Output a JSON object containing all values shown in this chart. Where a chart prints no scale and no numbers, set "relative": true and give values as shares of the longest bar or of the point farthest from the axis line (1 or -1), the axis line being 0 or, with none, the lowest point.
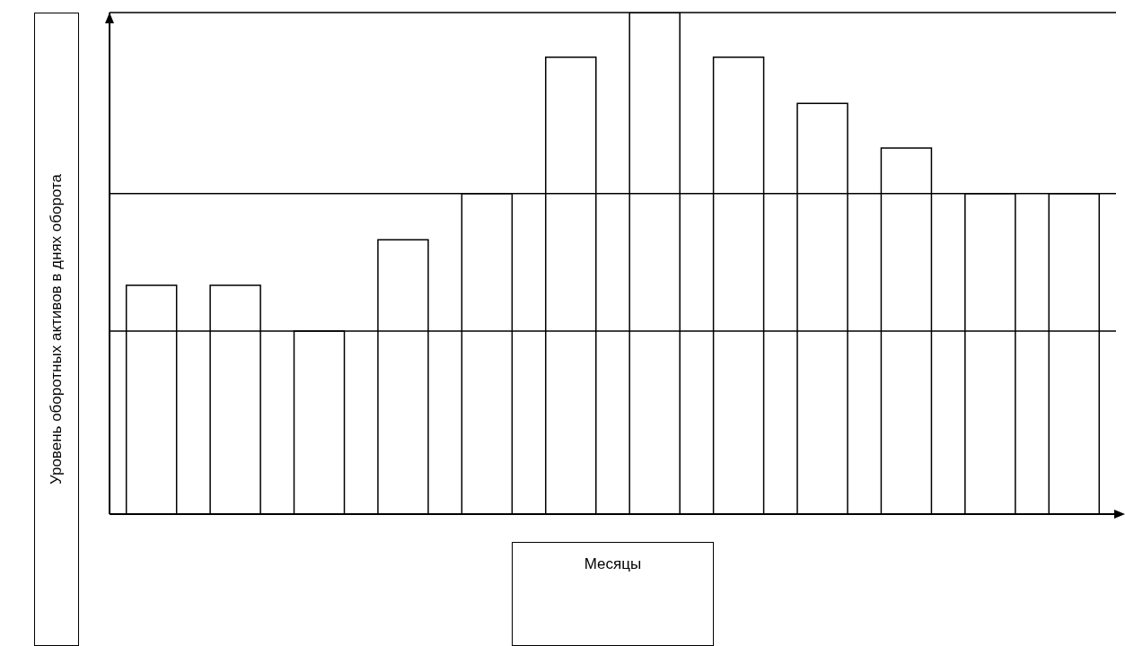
{
  "chart_data": {
    "type": "bar",
    "xlabel": "Месяцы",
    "ylabel": "Уровень оборотных активов в днях оборота",
    "relative": true,
    "categories": [
      null,
      null,
      null,
      null,
      null,
      null,
      null,
      null,
      null,
      null,
      null,
      null
    ],
    "values": [
      0.456,
      0.456,
      0.365,
      0.547,
      0.639,
      0.911,
      1,
      0.911,
      0.819,
      0.73,
      0.639,
      0.639
    ],
    "color": "#ffffff",
    "ref_lines": [
      {
        "axis": "y",
        "value": 0.365
      },
      {
        "axis": "y",
        "value": 0.639
      },
      {
        "axis": "y",
        "value": 1
      }
    ]
  }
}
